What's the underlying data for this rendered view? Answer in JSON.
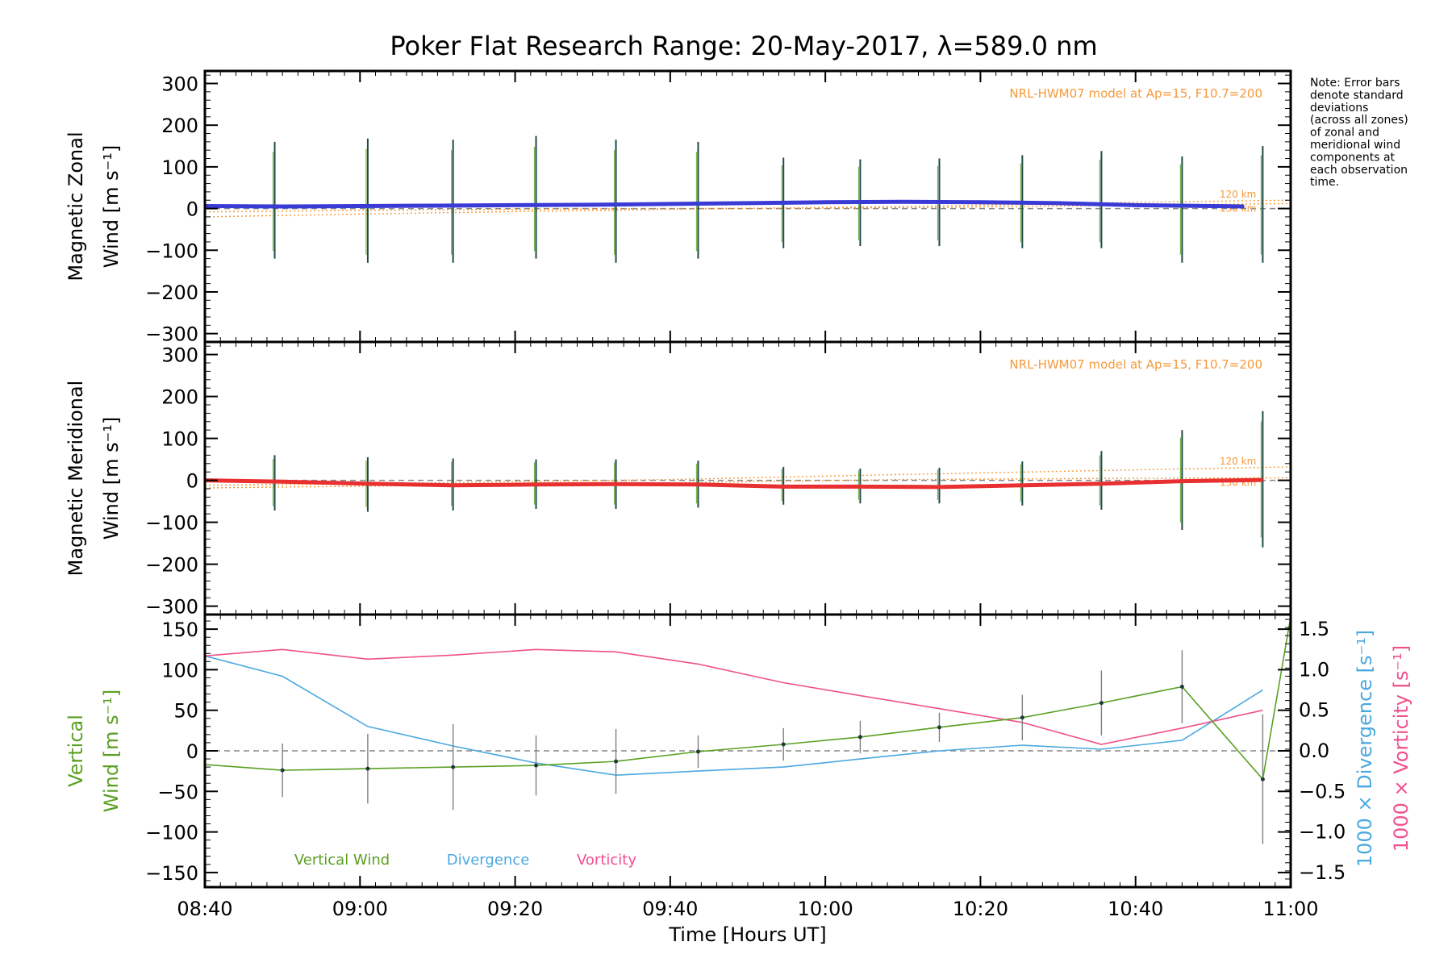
{
  "title": "Poker Flat Research Range: 20-May-2017, λ=589.0 nm",
  "note": [
    "Note: Error bars",
    "denote standard",
    "deviations",
    "(across all zones)",
    "of zonal and",
    "meridional wind",
    "components at",
    "each observation",
    "time."
  ],
  "colors": {
    "zonal": "#3a3ad6",
    "meridional": "#e83030",
    "model": "#f59a3a",
    "vertical": "#5aa022",
    "divergence": "#4aa8e0",
    "vorticity": "#f0508c",
    "axis": "#000000",
    "errorbar": "#7f7f7f"
  },
  "chart_data": [
    {
      "type": "line",
      "ylabel_lines": [
        "Magnetic Zonal",
        "Wind [m s⁻¹]"
      ],
      "ylim": [
        -320,
        330
      ],
      "yticks": [
        -300,
        -200,
        -100,
        0,
        100,
        200,
        300
      ],
      "xlim": [
        520,
        660
      ],
      "model_label": "NRL-HWM07 model at Ap=15, F10.7=200",
      "model_levels": [
        "120 km",
        "130 km"
      ],
      "series": [
        {
          "x": [
            520,
            530,
            540,
            550,
            560,
            570,
            580,
            590,
            600,
            610,
            620,
            630,
            640,
            650,
            654
          ],
          "y": [
            6,
            5,
            6,
            7,
            8,
            9,
            11,
            13,
            15,
            16,
            15,
            13,
            8,
            6,
            5
          ]
        }
      ],
      "errorbars": {
        "x": [
          529,
          541,
          552,
          562.7,
          573,
          583.6,
          594.6,
          604.5,
          614.7,
          625.4,
          635.6,
          646,
          656.4
        ],
        "low": [
          -120,
          -130,
          -130,
          -120,
          -130,
          -120,
          -95,
          -90,
          -90,
          -95,
          -95,
          -130,
          -130
        ],
        "high": [
          160,
          168,
          165,
          174,
          165,
          160,
          122,
          118,
          120,
          128,
          138,
          125,
          150
        ]
      },
      "model_lines": [
        {
          "x": [
            520,
            550,
            580,
            610,
            640,
            660
          ],
          "y": [
            -20,
            -10,
            -2,
            5,
            15,
            20
          ]
        },
        {
          "x": [
            520,
            550,
            580,
            610,
            640,
            660
          ],
          "y": [
            -8,
            -3,
            0,
            2,
            8,
            12
          ]
        }
      ]
    },
    {
      "type": "line",
      "ylabel_lines": [
        "Magnetic Meridional",
        "Wind [m s⁻¹]"
      ],
      "ylim": [
        -320,
        330
      ],
      "yticks": [
        -300,
        -200,
        -100,
        0,
        100,
        200,
        300
      ],
      "xlim": [
        520,
        660
      ],
      "model_label": "NRL-HWM07 model at Ap=15, F10.7=200",
      "model_levels": [
        "120 km",
        "130 km"
      ],
      "series": [
        {
          "x": [
            520,
            530,
            541,
            552,
            562.7,
            573,
            583.6,
            594.6,
            604.5,
            614.7,
            625.4,
            635.6,
            646,
            656.4
          ],
          "y": [
            0,
            -3,
            -8,
            -12,
            -10,
            -9,
            -10,
            -15,
            -15,
            -16,
            -12,
            -8,
            -2,
            1
          ]
        }
      ],
      "errorbars": {
        "x": [
          529,
          541,
          552,
          562.7,
          573,
          583.6,
          594.6,
          604.5,
          614.7,
          625.4,
          635.6,
          646,
          656.4
        ],
        "low": [
          -72,
          -75,
          -72,
          -68,
          -68,
          -65,
          -58,
          -55,
          -55,
          -60,
          -70,
          -118,
          -160
        ],
        "high": [
          60,
          55,
          52,
          50,
          50,
          47,
          32,
          28,
          30,
          45,
          70,
          120,
          165
        ]
      },
      "model_lines": [
        {
          "x": [
            520,
            550,
            580,
            610,
            640,
            660
          ],
          "y": [
            -12,
            -6,
            2,
            14,
            25,
            32
          ]
        },
        {
          "x": [
            520,
            550,
            580,
            610,
            640,
            660
          ],
          "y": [
            -18,
            -12,
            -6,
            2,
            5,
            6
          ]
        }
      ]
    },
    {
      "type": "line",
      "ylabel_lines": [
        "Vertical",
        "Wind [m s⁻¹]"
      ],
      "ylim": [
        -168,
        168
      ],
      "yticks": [
        -150,
        -100,
        -50,
        0,
        50,
        100,
        150
      ],
      "xlim": [
        520,
        660
      ],
      "xticks": [
        520,
        540,
        560,
        580,
        600,
        620,
        640,
        660
      ],
      "xtick_labels": [
        "08:40",
        "09:00",
        "09:20",
        "09:40",
        "10:00",
        "10:20",
        "10:40",
        "11:00"
      ],
      "xlabel": "Time [Hours UT]",
      "right_axis": {
        "ylim": [
          -1.68,
          1.68
        ],
        "ticks": [
          -1.5,
          -1.0,
          -0.5,
          0.0,
          0.5,
          1.0,
          1.5
        ],
        "tick_labels": [
          "−1.5",
          "−1.0",
          "−0.5",
          "0.0",
          "0.5",
          "1.0",
          "1.5"
        ],
        "label_divergence": "1000 × Divergence [s⁻¹]",
        "label_vorticity": "1000 × Vorticity [s⁻¹]"
      },
      "legend": [
        "Vertical Wind",
        "Divergence",
        "Vorticity"
      ],
      "series": [
        {
          "name": "Vertical Wind",
          "x": [
            520,
            530,
            541,
            552,
            562.7,
            573,
            583.6,
            594.6,
            604.5,
            614.7,
            625.4,
            635.6,
            646,
            656.4,
            660
          ],
          "y": [
            -17,
            -24,
            -22,
            -20,
            -18,
            -13,
            -1,
            8,
            17,
            29,
            41,
            59,
            79,
            -35,
            165
          ],
          "err": [
            null,
            33,
            43,
            53,
            37,
            40,
            20,
            20,
            20,
            18,
            28,
            40,
            45,
            80,
            null
          ]
        },
        {
          "name": "Divergence",
          "axis": "right",
          "x": [
            520,
            530,
            541,
            552,
            562.7,
            573,
            583.6,
            594.6,
            604.5,
            614.7,
            625.4,
            635.6,
            646,
            656.4
          ],
          "y": [
            1.17,
            0.92,
            0.3,
            0.06,
            -0.15,
            -0.3,
            -0.25,
            -0.2,
            -0.1,
            0.0,
            0.07,
            0.02,
            0.13,
            0.75
          ]
        },
        {
          "name": "Vorticity",
          "axis": "right",
          "x": [
            520,
            530,
            541,
            552,
            562.7,
            573,
            583.6,
            594.6,
            604.5,
            614.7,
            625.4,
            635.6,
            646,
            656.4
          ],
          "y": [
            1.17,
            1.25,
            1.13,
            1.18,
            1.25,
            1.22,
            1.07,
            0.84,
            0.68,
            0.52,
            0.35,
            0.08,
            0.28,
            0.5
          ]
        }
      ]
    }
  ]
}
